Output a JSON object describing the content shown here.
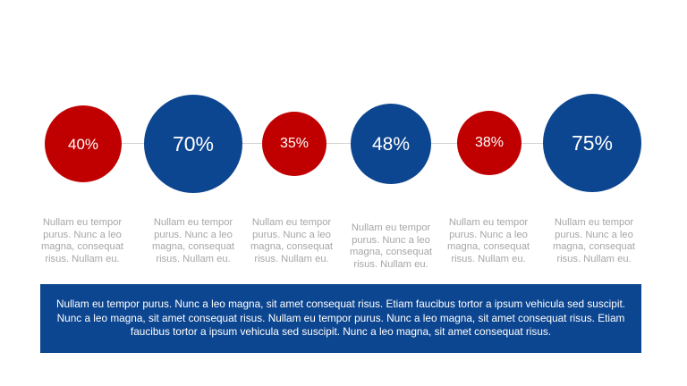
{
  "colors": {
    "red": "#c00000",
    "blue": "#0d4690",
    "caption_text": "#a6a6a6",
    "connector": "#d4d4d4"
  },
  "steps": [
    {
      "value": "40%",
      "color": "red",
      "caption": "Nullam eu tempor purus. Nunc a leo magna, consequat risus. Nullam eu."
    },
    {
      "value": "70%",
      "color": "blue",
      "caption": "Nullam eu tempor purus. Nunc a leo magna, consequat risus. Nullam eu."
    },
    {
      "value": "35%",
      "color": "red",
      "caption": "Nullam eu tempor purus. Nunc a leo magna, consequat risus. Nullam eu."
    },
    {
      "value": "48%",
      "color": "blue",
      "caption": "Nullam eu tempor purus. Nunc a leo magna, consequat risus. Nullam eu."
    },
    {
      "value": "38%",
      "color": "red",
      "caption": "Nullam eu tempor purus. Nunc a leo magna, consequat risus. Nullam eu."
    },
    {
      "value": "75%",
      "color": "blue",
      "caption": "Nullam eu tempor purus. Nunc a leo magna, consequat risus. Nullam eu."
    }
  ],
  "footer": {
    "text": "Nullam eu tempor purus. Nunc a leo magna, sit amet consequat risus. Etiam faucibus tortor a ipsum vehicula sed suscipit. Nunc a leo magna, sit amet consequat risus. Nullam eu tempor purus. Nunc a leo magna, sit amet consequat risus. Etiam faucibus tortor a ipsum vehicula sed suscipit. Nunc a leo magna, sit amet consequat risus."
  }
}
